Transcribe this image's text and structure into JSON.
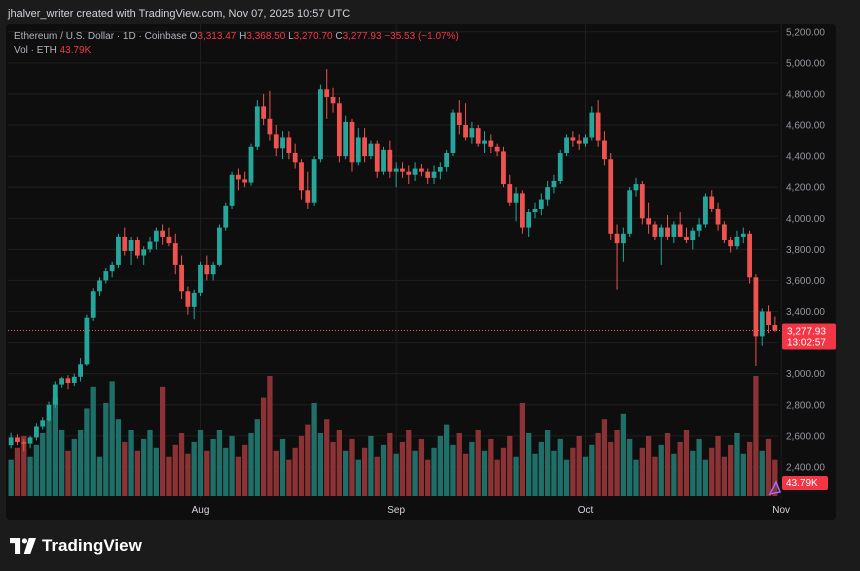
{
  "caption": "jhalver_writer created with TradingView.com, Nov 07, 2025 10:57 UTC",
  "legend": {
    "symbol": "Ethereum / U.S. Dollar · 1D · Coinbase",
    "o_label": "O",
    "o": "3,313.47",
    "h_label": "H",
    "h": "3,368.50",
    "l_label": "L",
    "l": "3,270.70",
    "c_label": "C",
    "c": "3,277.93",
    "change": "−35.53 (−1.07%)",
    "vol_label": "Vol · ETH",
    "vol": "43.79K"
  },
  "footer": {
    "brand": "TradingView"
  },
  "colors": {
    "up": "#26a69a",
    "down": "#ef5350",
    "up_vol": "#1f6f68",
    "down_vol": "#8b3234",
    "grid": "#1e1e1e",
    "axis_text": "#9598a1",
    "bg": "#0e0e0e"
  },
  "chart_data": {
    "type": "candlestick",
    "grid": true,
    "ylim": [
      2200,
      5250
    ],
    "y_ticks": [
      "5,200.00",
      "5,000.00",
      "4,800.00",
      "4,600.00",
      "4,400.00",
      "4,200.00",
      "4,000.00",
      "3,800.00",
      "3,600.00",
      "3,400.00",
      "3,200.00",
      "3,000.00",
      "2,800.00",
      "2,600.00",
      "2,400.00"
    ],
    "x_ticks": [
      {
        "label": "Aug",
        "index": 30
      },
      {
        "label": "Sep",
        "index": 61
      },
      {
        "label": "Oct",
        "index": 91
      },
      {
        "label": "Nov",
        "index": 122
      }
    ],
    "price_label": "3,277.93",
    "countdown": "13:02:57",
    "volume_label": "43.79K",
    "candles": [
      [
        2540,
        2620,
        2520,
        2590
      ],
      [
        2590,
        2610,
        2540,
        2560
      ],
      [
        2560,
        2580,
        2500,
        2550
      ],
      [
        2550,
        2600,
        2520,
        2590
      ],
      [
        2590,
        2680,
        2570,
        2660
      ],
      [
        2660,
        2720,
        2640,
        2700
      ],
      [
        2700,
        2820,
        2690,
        2800
      ],
      [
        2800,
        2950,
        2780,
        2930
      ],
      [
        2930,
        2980,
        2910,
        2970
      ],
      [
        2970,
        2990,
        2900,
        2940
      ],
      [
        2940,
        3000,
        2920,
        2980
      ],
      [
        2980,
        3100,
        2950,
        3060
      ],
      [
        3060,
        3380,
        3050,
        3360
      ],
      [
        3360,
        3550,
        3340,
        3530
      ],
      [
        3530,
        3620,
        3500,
        3600
      ],
      [
        3600,
        3680,
        3580,
        3660
      ],
      [
        3660,
        3720,
        3620,
        3700
      ],
      [
        3700,
        3900,
        3680,
        3880
      ],
      [
        3880,
        3940,
        3760,
        3790
      ],
      [
        3790,
        3880,
        3700,
        3860
      ],
      [
        3860,
        3880,
        3740,
        3760
      ],
      [
        3760,
        3820,
        3700,
        3800
      ],
      [
        3800,
        3880,
        3780,
        3850
      ],
      [
        3850,
        3940,
        3800,
        3920
      ],
      [
        3920,
        3960,
        3830,
        3880
      ],
      [
        3880,
        3940,
        3820,
        3840
      ],
      [
        3840,
        3900,
        3640,
        3700
      ],
      [
        3700,
        3760,
        3480,
        3530
      ],
      [
        3530,
        3560,
        3380,
        3430
      ],
      [
        3430,
        3540,
        3350,
        3520
      ],
      [
        3520,
        3720,
        3500,
        3700
      ],
      [
        3700,
        3760,
        3600,
        3640
      ],
      [
        3640,
        3720,
        3600,
        3700
      ],
      [
        3700,
        3960,
        3690,
        3940
      ],
      [
        3940,
        4100,
        3920,
        4080
      ],
      [
        4080,
        4300,
        4060,
        4280
      ],
      [
        4280,
        4320,
        4180,
        4250
      ],
      [
        4250,
        4300,
        4200,
        4230
      ],
      [
        4230,
        4480,
        4210,
        4460
      ],
      [
        4460,
        4760,
        4440,
        4720
      ],
      [
        4720,
        4800,
        4600,
        4640
      ],
      [
        4640,
        4820,
        4500,
        4540
      ],
      [
        4540,
        4600,
        4400,
        4450
      ],
      [
        4450,
        4560,
        4380,
        4520
      ],
      [
        4520,
        4560,
        4380,
        4420
      ],
      [
        4420,
        4480,
        4320,
        4360
      ],
      [
        4360,
        4380,
        4120,
        4180
      ],
      [
        4180,
        4300,
        4060,
        4100
      ],
      [
        4100,
        4400,
        4080,
        4380
      ],
      [
        4380,
        4860,
        4360,
        4830
      ],
      [
        4830,
        4960,
        4640,
        4780
      ],
      [
        4780,
        4840,
        4680,
        4740
      ],
      [
        4740,
        4780,
        4360,
        4400
      ],
      [
        4400,
        4660,
        4380,
        4620
      ],
      [
        4620,
        4640,
        4300,
        4360
      ],
      [
        4360,
        4580,
        4340,
        4520
      ],
      [
        4520,
        4580,
        4360,
        4400
      ],
      [
        4400,
        4500,
        4380,
        4480
      ],
      [
        4480,
        4500,
        4260,
        4300
      ],
      [
        4300,
        4460,
        4280,
        4440
      ],
      [
        4440,
        4500,
        4260,
        4300
      ],
      [
        4300,
        4360,
        4200,
        4320
      ],
      [
        4320,
        4360,
        4260,
        4300
      ],
      [
        4300,
        4340,
        4220,
        4280
      ],
      [
        4280,
        4360,
        4240,
        4320
      ],
      [
        4320,
        4350,
        4270,
        4300
      ],
      [
        4300,
        4320,
        4220,
        4260
      ],
      [
        4260,
        4340,
        4220,
        4300
      ],
      [
        4300,
        4360,
        4250,
        4330
      ],
      [
        4330,
        4440,
        4300,
        4420
      ],
      [
        4420,
        4700,
        4400,
        4680
      ],
      [
        4680,
        4760,
        4540,
        4600
      ],
      [
        4600,
        4740,
        4500,
        4520
      ],
      [
        4520,
        4620,
        4480,
        4580
      ],
      [
        4580,
        4600,
        4460,
        4480
      ],
      [
        4480,
        4560,
        4420,
        4500
      ],
      [
        4500,
        4540,
        4420,
        4460
      ],
      [
        4460,
        4480,
        4400,
        4430
      ],
      [
        4430,
        4460,
        4200,
        4220
      ],
      [
        4220,
        4280,
        4080,
        4100
      ],
      [
        4100,
        4200,
        3980,
        4160
      ],
      [
        4160,
        4180,
        3900,
        3940
      ],
      [
        3940,
        4060,
        3880,
        4040
      ],
      [
        4040,
        4100,
        4000,
        4060
      ],
      [
        4060,
        4160,
        4020,
        4120
      ],
      [
        4120,
        4240,
        4080,
        4200
      ],
      [
        4200,
        4280,
        4160,
        4240
      ],
      [
        4240,
        4440,
        4220,
        4420
      ],
      [
        4420,
        4540,
        4400,
        4520
      ],
      [
        4520,
        4560,
        4460,
        4500
      ],
      [
        4500,
        4540,
        4440,
        4480
      ],
      [
        4480,
        4540,
        4460,
        4520
      ],
      [
        4520,
        4720,
        4500,
        4680
      ],
      [
        4680,
        4760,
        4460,
        4500
      ],
      [
        4500,
        4560,
        4340,
        4380
      ],
      [
        4380,
        4420,
        3860,
        3900
      ],
      [
        3900,
        3960,
        3540,
        3840
      ],
      [
        3840,
        3940,
        3720,
        3900
      ],
      [
        3900,
        4200,
        3880,
        4180
      ],
      [
        4180,
        4260,
        4140,
        4220
      ],
      [
        4220,
        4240,
        3960,
        4000
      ],
      [
        4000,
        4100,
        3900,
        3960
      ],
      [
        3960,
        3980,
        3860,
        3880
      ],
      [
        3880,
        3960,
        3700,
        3940
      ],
      [
        3940,
        4020,
        3860,
        3880
      ],
      [
        3880,
        3980,
        3840,
        3960
      ],
      [
        3960,
        4040,
        3900,
        3880
      ],
      [
        3880,
        3940,
        3840,
        3860
      ],
      [
        3860,
        3940,
        3800,
        3920
      ],
      [
        3920,
        4000,
        3880,
        3960
      ],
      [
        3960,
        4160,
        3940,
        4140
      ],
      [
        4140,
        4180,
        4040,
        4060
      ],
      [
        4060,
        4100,
        3920,
        3960
      ],
      [
        3960,
        3980,
        3840,
        3860
      ],
      [
        3860,
        3880,
        3780,
        3820
      ],
      [
        3820,
        3920,
        3800,
        3880
      ],
      [
        3880,
        3940,
        3840,
        3900
      ],
      [
        3900,
        3920,
        3580,
        3620
      ],
      [
        3620,
        3640,
        3050,
        3240
      ],
      [
        3240,
        3420,
        3180,
        3400
      ],
      [
        3400,
        3440,
        3260,
        3313
      ],
      [
        3313,
        3368,
        3270,
        3278
      ]
    ],
    "volumes": [
      1,
      0,
      1,
      1,
      1,
      1,
      2,
      2,
      1,
      1,
      1,
      2,
      2,
      2,
      1,
      2,
      2,
      2,
      1,
      1,
      1,
      1,
      2,
      1,
      2,
      1,
      1,
      1,
      1,
      1,
      1,
      1,
      1,
      2,
      1,
      1,
      1,
      1,
      1,
      2,
      2,
      2,
      1,
      1,
      1,
      1,
      1,
      2,
      2,
      1,
      2,
      1,
      1,
      1,
      1,
      1,
      1,
      1,
      1,
      1,
      1,
      1,
      1,
      1,
      1,
      1,
      1,
      1,
      1,
      2,
      1,
      1,
      1,
      1,
      1,
      1,
      1,
      1,
      1,
      1,
      1,
      2,
      1,
      1,
      1,
      1,
      1,
      1,
      1,
      1,
      1,
      1,
      1,
      1,
      2,
      1,
      1,
      2,
      1,
      1,
      1,
      1,
      1,
      1,
      1,
      1,
      1,
      1,
      1,
      1,
      1,
      1,
      1,
      1,
      1,
      1,
      1,
      1,
      2,
      1,
      1,
      1
    ]
  }
}
